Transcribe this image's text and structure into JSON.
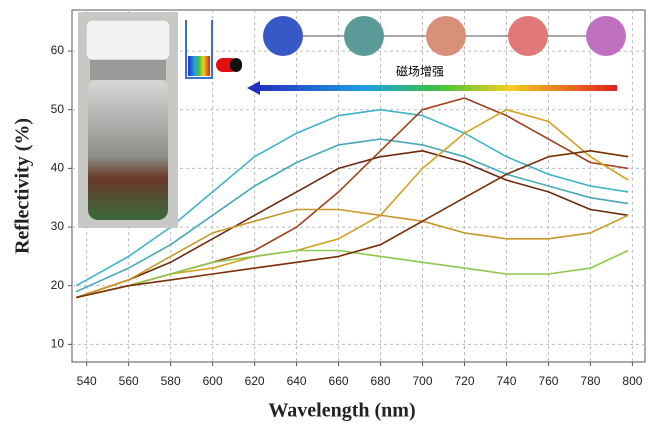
{
  "chart_data": {
    "type": "line",
    "xlabel": "Wavelength (nm)",
    "ylabel": "Reflectivity (%)",
    "annotation": "磁场增强",
    "grid": true,
    "xlim": [
      533,
      806
    ],
    "ylim": [
      7,
      67
    ],
    "xticks": [
      540,
      560,
      580,
      600,
      620,
      640,
      660,
      680,
      700,
      720,
      740,
      760,
      780,
      800
    ],
    "yticks": [
      10,
      20,
      30,
      40,
      50,
      60
    ],
    "x": [
      535,
      560,
      580,
      600,
      620,
      640,
      660,
      680,
      700,
      720,
      740,
      760,
      780,
      798
    ],
    "series": [
      {
        "color": "#3fb3c8",
        "values": [
          20,
          25,
          30,
          36,
          42,
          46,
          49,
          50,
          49,
          46,
          42,
          39,
          37,
          36
        ]
      },
      {
        "color": "#4aa8b8",
        "values": [
          19,
          23,
          27,
          32,
          37,
          41,
          44,
          45,
          44,
          42,
          39,
          37,
          35,
          34
        ]
      },
      {
        "color": "#6b2a10",
        "values": [
          18,
          21,
          24,
          28,
          32,
          36,
          40,
          42,
          43,
          41,
          38,
          36,
          33,
          32
        ]
      },
      {
        "color": "#a0401c",
        "values": [
          18,
          20,
          22,
          24,
          26,
          30,
          36,
          43,
          50,
          52,
          49,
          45,
          41,
          40
        ]
      },
      {
        "color": "#d4a020",
        "values": [
          18,
          20,
          22,
          23,
          25,
          26,
          28,
          32,
          40,
          46,
          50,
          48,
          42,
          38
        ]
      },
      {
        "color": "#c8982a",
        "values": [
          18,
          21,
          25,
          29,
          31,
          33,
          33,
          32,
          31,
          29,
          28,
          28,
          29,
          32
        ]
      },
      {
        "color": "#8cc850",
        "values": [
          18,
          20,
          22,
          24,
          25,
          26,
          26,
          25,
          24,
          23,
          22,
          22,
          23,
          26
        ]
      },
      {
        "color": "#7a2e08",
        "values": [
          18,
          20,
          21,
          22,
          23,
          24,
          25,
          27,
          31,
          35,
          39,
          42,
          43,
          42
        ]
      }
    ]
  }
}
